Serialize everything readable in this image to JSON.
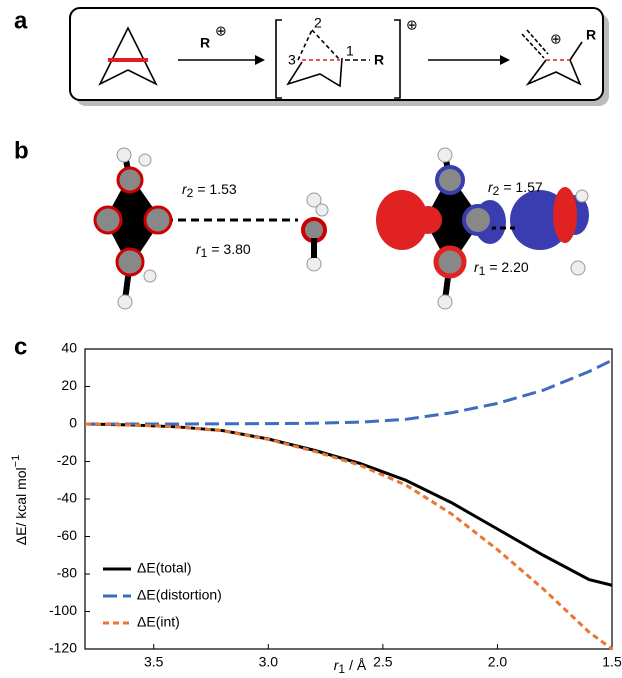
{
  "panel_a": {
    "label": "a",
    "reagent": "R",
    "reagent_charge": "⊕",
    "intermediate": {
      "atom_2": "2",
      "atom_3": "3",
      "atom_1": "1",
      "group": "R",
      "charge": "⊕"
    },
    "product": {
      "charge": "⊕",
      "group": "R"
    }
  },
  "panel_b": {
    "label": "b",
    "left": {
      "r2_symbol": "r",
      "r2_subscript": "2",
      "r2_text": "= 1.53",
      "r1_symbol": "r",
      "r1_subscript": "1",
      "r1_text": "= 3.80"
    },
    "right": {
      "r2_symbol": "r",
      "r2_subscript": "2",
      "r2_text": "= 1.57",
      "r1_symbol": "r",
      "r1_subscript": "1",
      "r1_text": "= 2.20"
    }
  },
  "chart_data": {
    "type": "line",
    "panel_label": "c",
    "x_label": {
      "symbol": "r",
      "subscript": "1",
      "unit": "/ Å"
    },
    "y_label": {
      "text": "ΔE/ kcal mol",
      "superscript": "−1"
    },
    "x": [
      3.8,
      3.6,
      3.4,
      3.2,
      3.0,
      2.8,
      2.6,
      2.4,
      2.2,
      2.0,
      1.8,
      1.6,
      1.5
    ],
    "xlim": [
      3.8,
      1.5
    ],
    "xticks": [
      3.5,
      {
        "value": 3,
        "label": "3.0"
      },
      2.5,
      {
        "value": 2,
        "label": "2.0"
      },
      1.5
    ],
    "ylim": [
      -120,
      40
    ],
    "yticks": [
      -120,
      -100,
      -80,
      -60,
      -40,
      -20,
      0,
      20,
      40
    ],
    "legend": "lower left",
    "series": [
      {
        "name": "ΔE(total)",
        "color": "#000000",
        "dash": "solid",
        "values": [
          0,
          -0.5,
          -1.5,
          -3.5,
          -8,
          -14,
          -21,
          -30,
          -42,
          -56,
          -70,
          -83,
          -86
        ]
      },
      {
        "name": "ΔE(distortion)",
        "color": "#3f6cc0",
        "dash": "long",
        "values": [
          0,
          0,
          0,
          0.1,
          0.2,
          0.4,
          1,
          2.5,
          6,
          11,
          18,
          28,
          34
        ]
      },
      {
        "name": "ΔE(int)",
        "color": "#ea7530",
        "dash": "short",
        "values": [
          0,
          -0.5,
          -1.5,
          -3.6,
          -8.2,
          -14.5,
          -22,
          -32.5,
          -48,
          -67,
          -88,
          -111,
          -120
        ]
      }
    ]
  }
}
